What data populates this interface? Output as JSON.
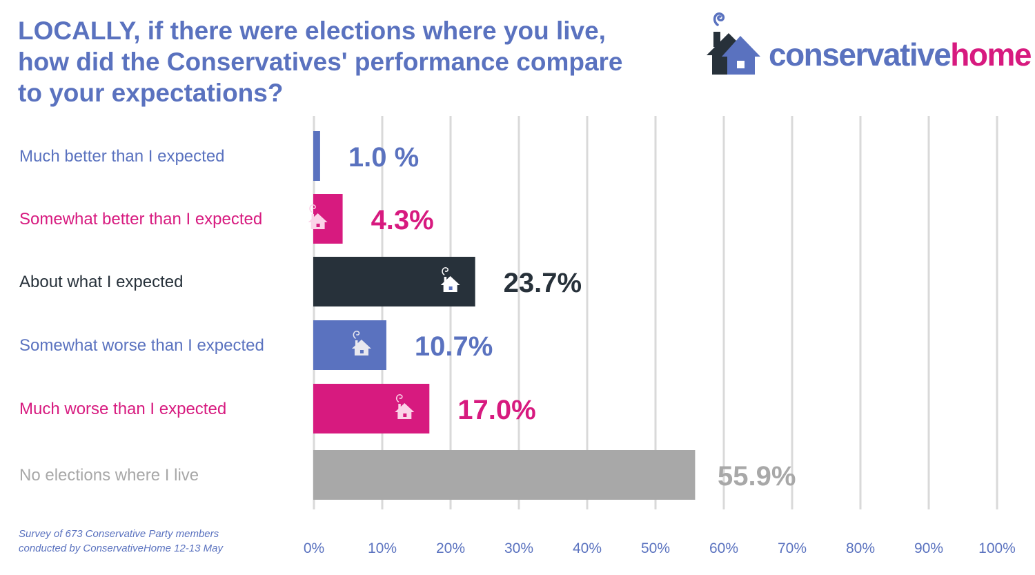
{
  "title_lines": [
    "LOCALLY, if there were elections where you live,",
    "how did the Conservatives' performance compare",
    "to your expectations?"
  ],
  "logo": {
    "part1": "conservative",
    "part2": "home"
  },
  "note_lines": [
    "Survey of 673 Conservative Party members",
    "conducted by ConservativeHome 12-13 May"
  ],
  "chart_data": {
    "type": "bar",
    "orientation": "horizontal",
    "categories": [
      "Much better than I expected",
      "Somewhat better than I expected",
      "About what I expected",
      "Somewhat worse than I expected",
      "Much worse than I expected",
      "No elections where I live"
    ],
    "values": [
      1.0,
      4.3,
      23.7,
      10.7,
      17.0,
      55.9
    ],
    "value_labels": [
      "1.0 %",
      "4.3%",
      "23.7%",
      "10.7%",
      "17.0%",
      "55.9%"
    ],
    "colors": [
      "#5a72bf",
      "#d71a7f",
      "#27313a",
      "#5a72bf",
      "#d71a7f",
      "#a8a8a8"
    ],
    "xlim": [
      0,
      100
    ],
    "x_ticks": [
      0,
      10,
      20,
      30,
      40,
      50,
      60,
      70,
      80,
      90,
      100
    ],
    "x_tick_labels": [
      "0%",
      "10%",
      "20%",
      "30%",
      "40%",
      "50%",
      "60%",
      "70%",
      "80%",
      "90%",
      "100%"
    ],
    "grid": true,
    "tick_color": "#5a72bf",
    "grid_color": "#d9d9d9"
  }
}
